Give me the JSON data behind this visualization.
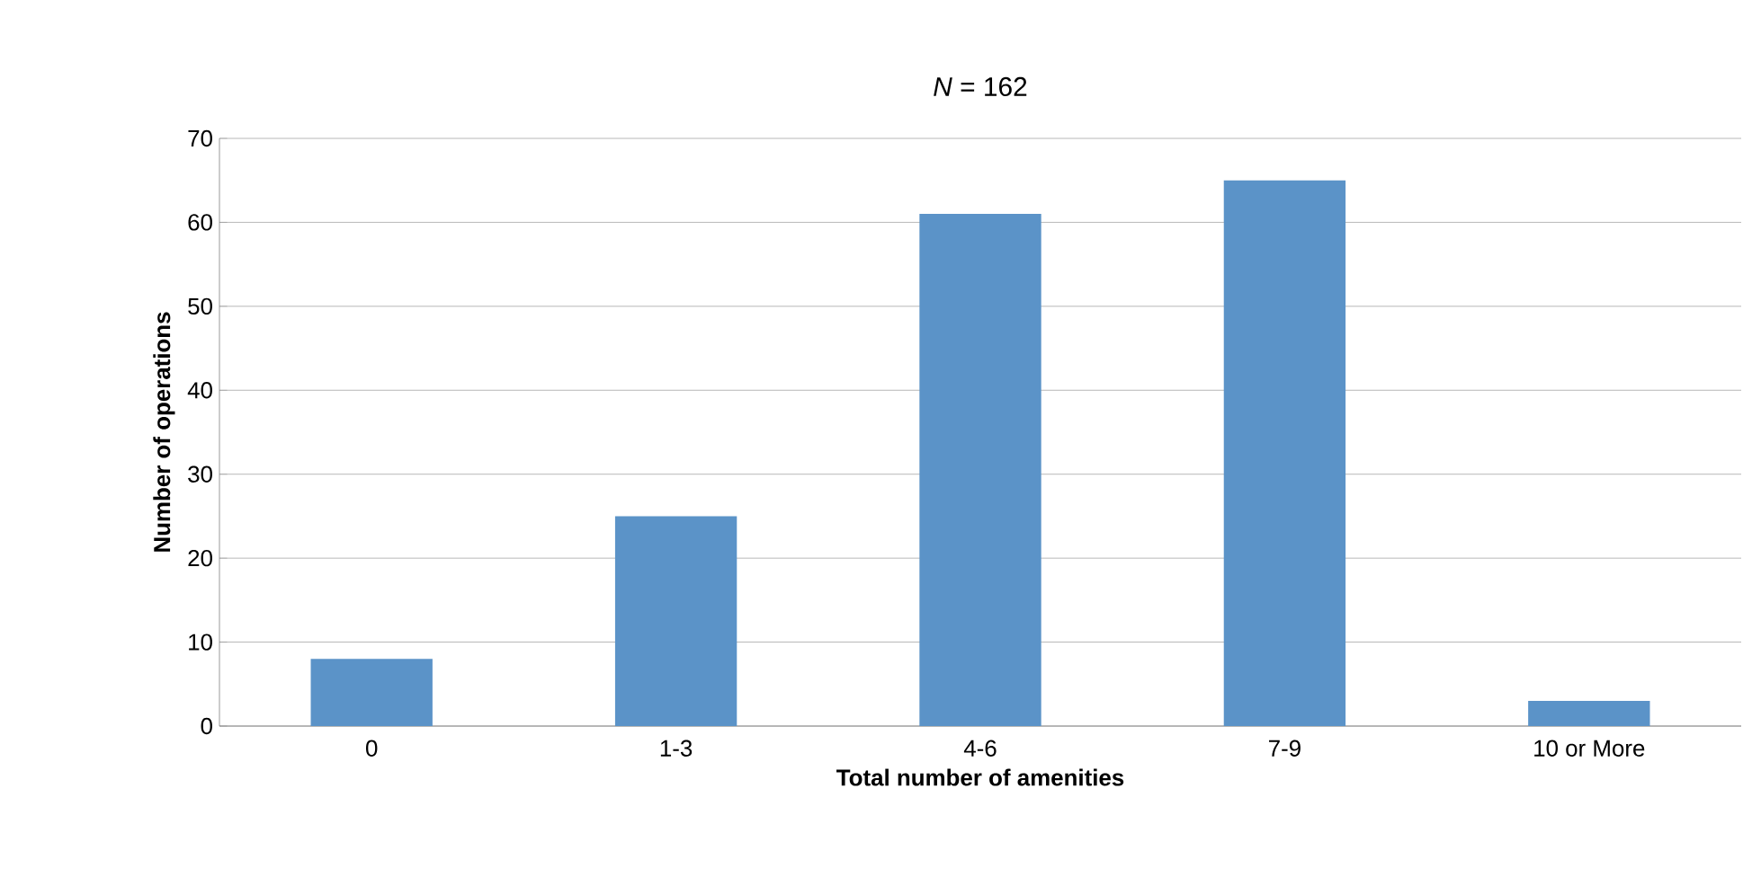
{
  "chart_data": {
    "type": "bar",
    "title": "*N* = 162",
    "xlabel": "Total number of amenities",
    "ylabel": "Number of operations",
    "categories": [
      "0",
      "1-3",
      "4-6",
      "7-9",
      "10 or More"
    ],
    "values": [
      8,
      25,
      61,
      65,
      3
    ],
    "color": "#5b93c8",
    "ylim": [
      0,
      70
    ],
    "yticks": [
      0,
      10,
      20,
      30,
      40,
      50,
      60,
      70
    ],
    "grid": "y"
  }
}
